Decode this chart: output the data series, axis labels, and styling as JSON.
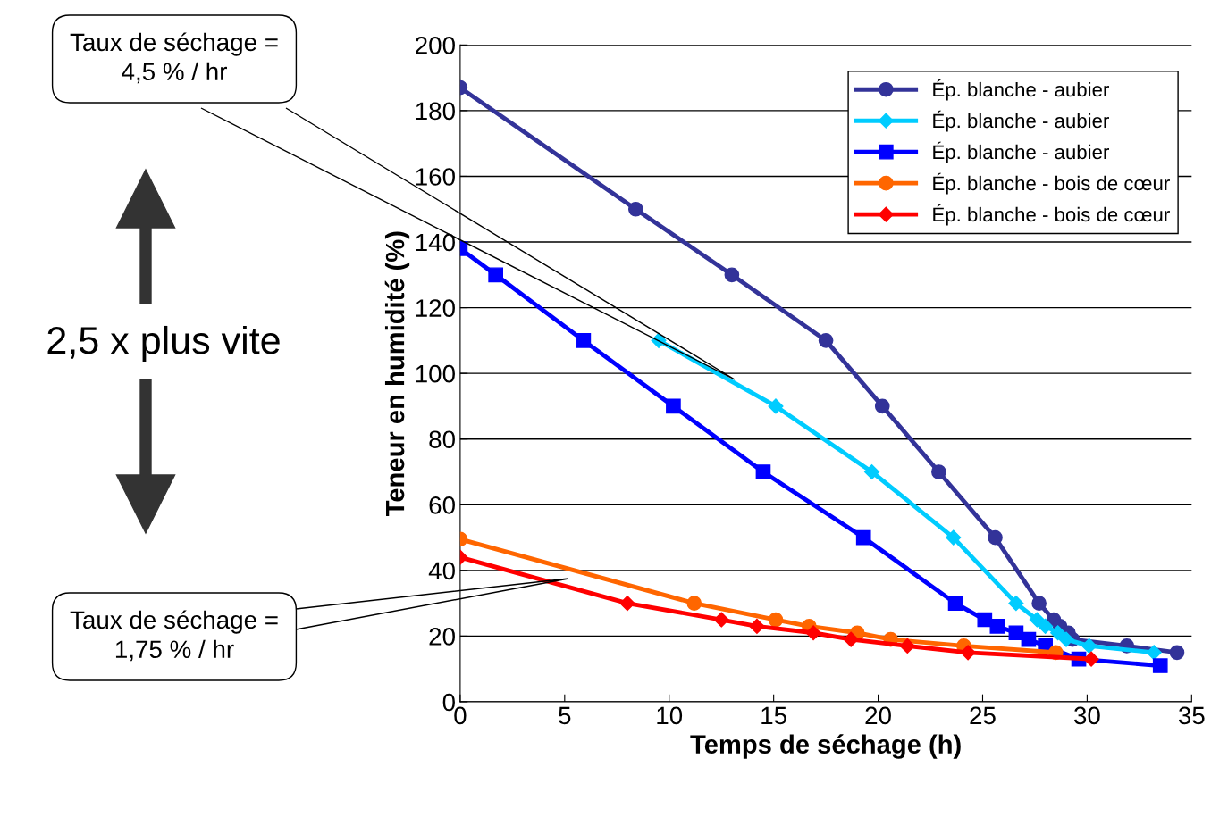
{
  "chart_data": {
    "type": "line",
    "xlabel": "Temps de séchage (h)",
    "ylabel": "Teneur en humidité (%)",
    "xlim": [
      0,
      35
    ],
    "ylim": [
      0,
      200
    ],
    "xticks": [
      0,
      5,
      10,
      15,
      20,
      25,
      30,
      35
    ],
    "yticks": [
      0,
      20,
      40,
      60,
      80,
      100,
      120,
      140,
      160,
      180,
      200
    ],
    "grid": "y",
    "legend": "top right",
    "series": [
      {
        "name": "Ép. blanche - aubier",
        "color": "#333399",
        "marker": "circle",
        "x": [
          0,
          8.4,
          13.0,
          17.5,
          20.2,
          22.9,
          25.6,
          27.7,
          28.4,
          28.7,
          29.1,
          29.3,
          31.9,
          34.3
        ],
        "values": [
          187,
          150,
          130,
          110,
          90,
          70,
          50,
          30,
          25,
          23,
          21,
          19,
          17,
          15
        ]
      },
      {
        "name": "Ép. blanche - aubier",
        "color": "#00ccff",
        "marker": "diamond",
        "x": [
          9.5,
          15.1,
          19.7,
          23.6,
          26.6,
          27.6,
          28.0,
          28.6,
          29.0,
          30.1,
          33.2
        ],
        "values": [
          110,
          90,
          70,
          50,
          30,
          25,
          23,
          21,
          19,
          17,
          15
        ]
      },
      {
        "name": "Ép. blanche - aubier",
        "color": "#0000ff",
        "marker": "square",
        "x": [
          0,
          1.7,
          5.9,
          10.2,
          14.5,
          19.3,
          23.7,
          25.1,
          25.7,
          26.6,
          27.2,
          28.0,
          29.6,
          33.5
        ],
        "values": [
          138,
          130,
          110,
          90,
          70,
          50,
          30,
          25,
          23,
          21,
          19,
          17,
          13,
          11
        ]
      },
      {
        "name": "Ép. blanche - bois de cœur",
        "color": "#ff6600",
        "marker": "circle",
        "x": [
          0,
          11.2,
          15.1,
          16.7,
          19.0,
          20.6,
          24.1,
          28.5
        ],
        "values": [
          49.5,
          30,
          25,
          23,
          21,
          19,
          17,
          15
        ]
      },
      {
        "name": "Ép. blanche - bois de cœur",
        "color": "#ff0000",
        "marker": "diamond",
        "x": [
          0,
          8.0,
          12.5,
          14.2,
          16.9,
          18.7,
          21.4,
          24.3,
          30.2
        ],
        "values": [
          44,
          30,
          25,
          23,
          21,
          19,
          17,
          15,
          13
        ]
      }
    ],
    "annotations": [
      "Taux de séchage =\n4,5 % / hr",
      "Taux de séchage =\n1,75 % / hr",
      "2,5 x plus vite"
    ]
  }
}
